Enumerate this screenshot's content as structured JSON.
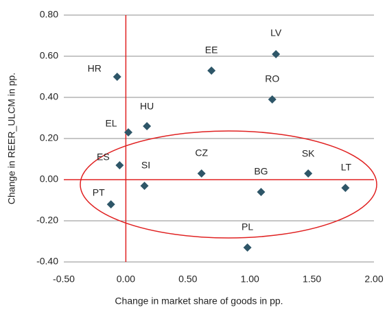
{
  "chart_data": {
    "type": "scatter",
    "xlabel": "Change in market share of goods in pp.",
    "ylabel": "Change in REER_ULCM in pp.",
    "color": "#2e5668",
    "axis_color": "#e02020",
    "grid": true,
    "xlim": [
      -0.5,
      2.0
    ],
    "ylim": [
      -0.4,
      0.8
    ],
    "xticks": [
      {
        "value": -0.5,
        "label": "-0.50"
      },
      {
        "value": 0,
        "label": "0.00"
      },
      {
        "value": 0.5,
        "label": "0.50"
      },
      {
        "value": 1,
        "label": "1.00"
      },
      {
        "value": 1.5,
        "label": "1.50"
      },
      {
        "value": 2,
        "label": "2.00"
      }
    ],
    "yticks": [
      {
        "value": -0.4,
        "label": "-0.40"
      },
      {
        "value": -0.2,
        "label": "-0.20"
      },
      {
        "value": 0,
        "label": "0.00"
      },
      {
        "value": 0.2,
        "label": "0.20"
      },
      {
        "value": 0.4,
        "label": "0.40"
      },
      {
        "value": 0.6,
        "label": "0.60"
      },
      {
        "value": 0.8,
        "label": "0.80"
      }
    ],
    "labels": [
      "HR",
      "EE",
      "LV",
      "RO",
      "HU",
      "EL",
      "ES",
      "SI",
      "CZ",
      "BG",
      "SK",
      "LT",
      "PT",
      "PL"
    ],
    "x": [
      -0.07,
      0.69,
      1.21,
      1.18,
      0.17,
      0.02,
      -0.05,
      0.15,
      0.61,
      1.09,
      1.47,
      1.77,
      -0.12,
      0.98
    ],
    "values": [
      0.5,
      0.53,
      0.61,
      0.39,
      0.26,
      0.23,
      0.07,
      -0.03,
      0.03,
      -0.06,
      0.03,
      -0.04,
      -0.12,
      -0.33
    ]
  }
}
